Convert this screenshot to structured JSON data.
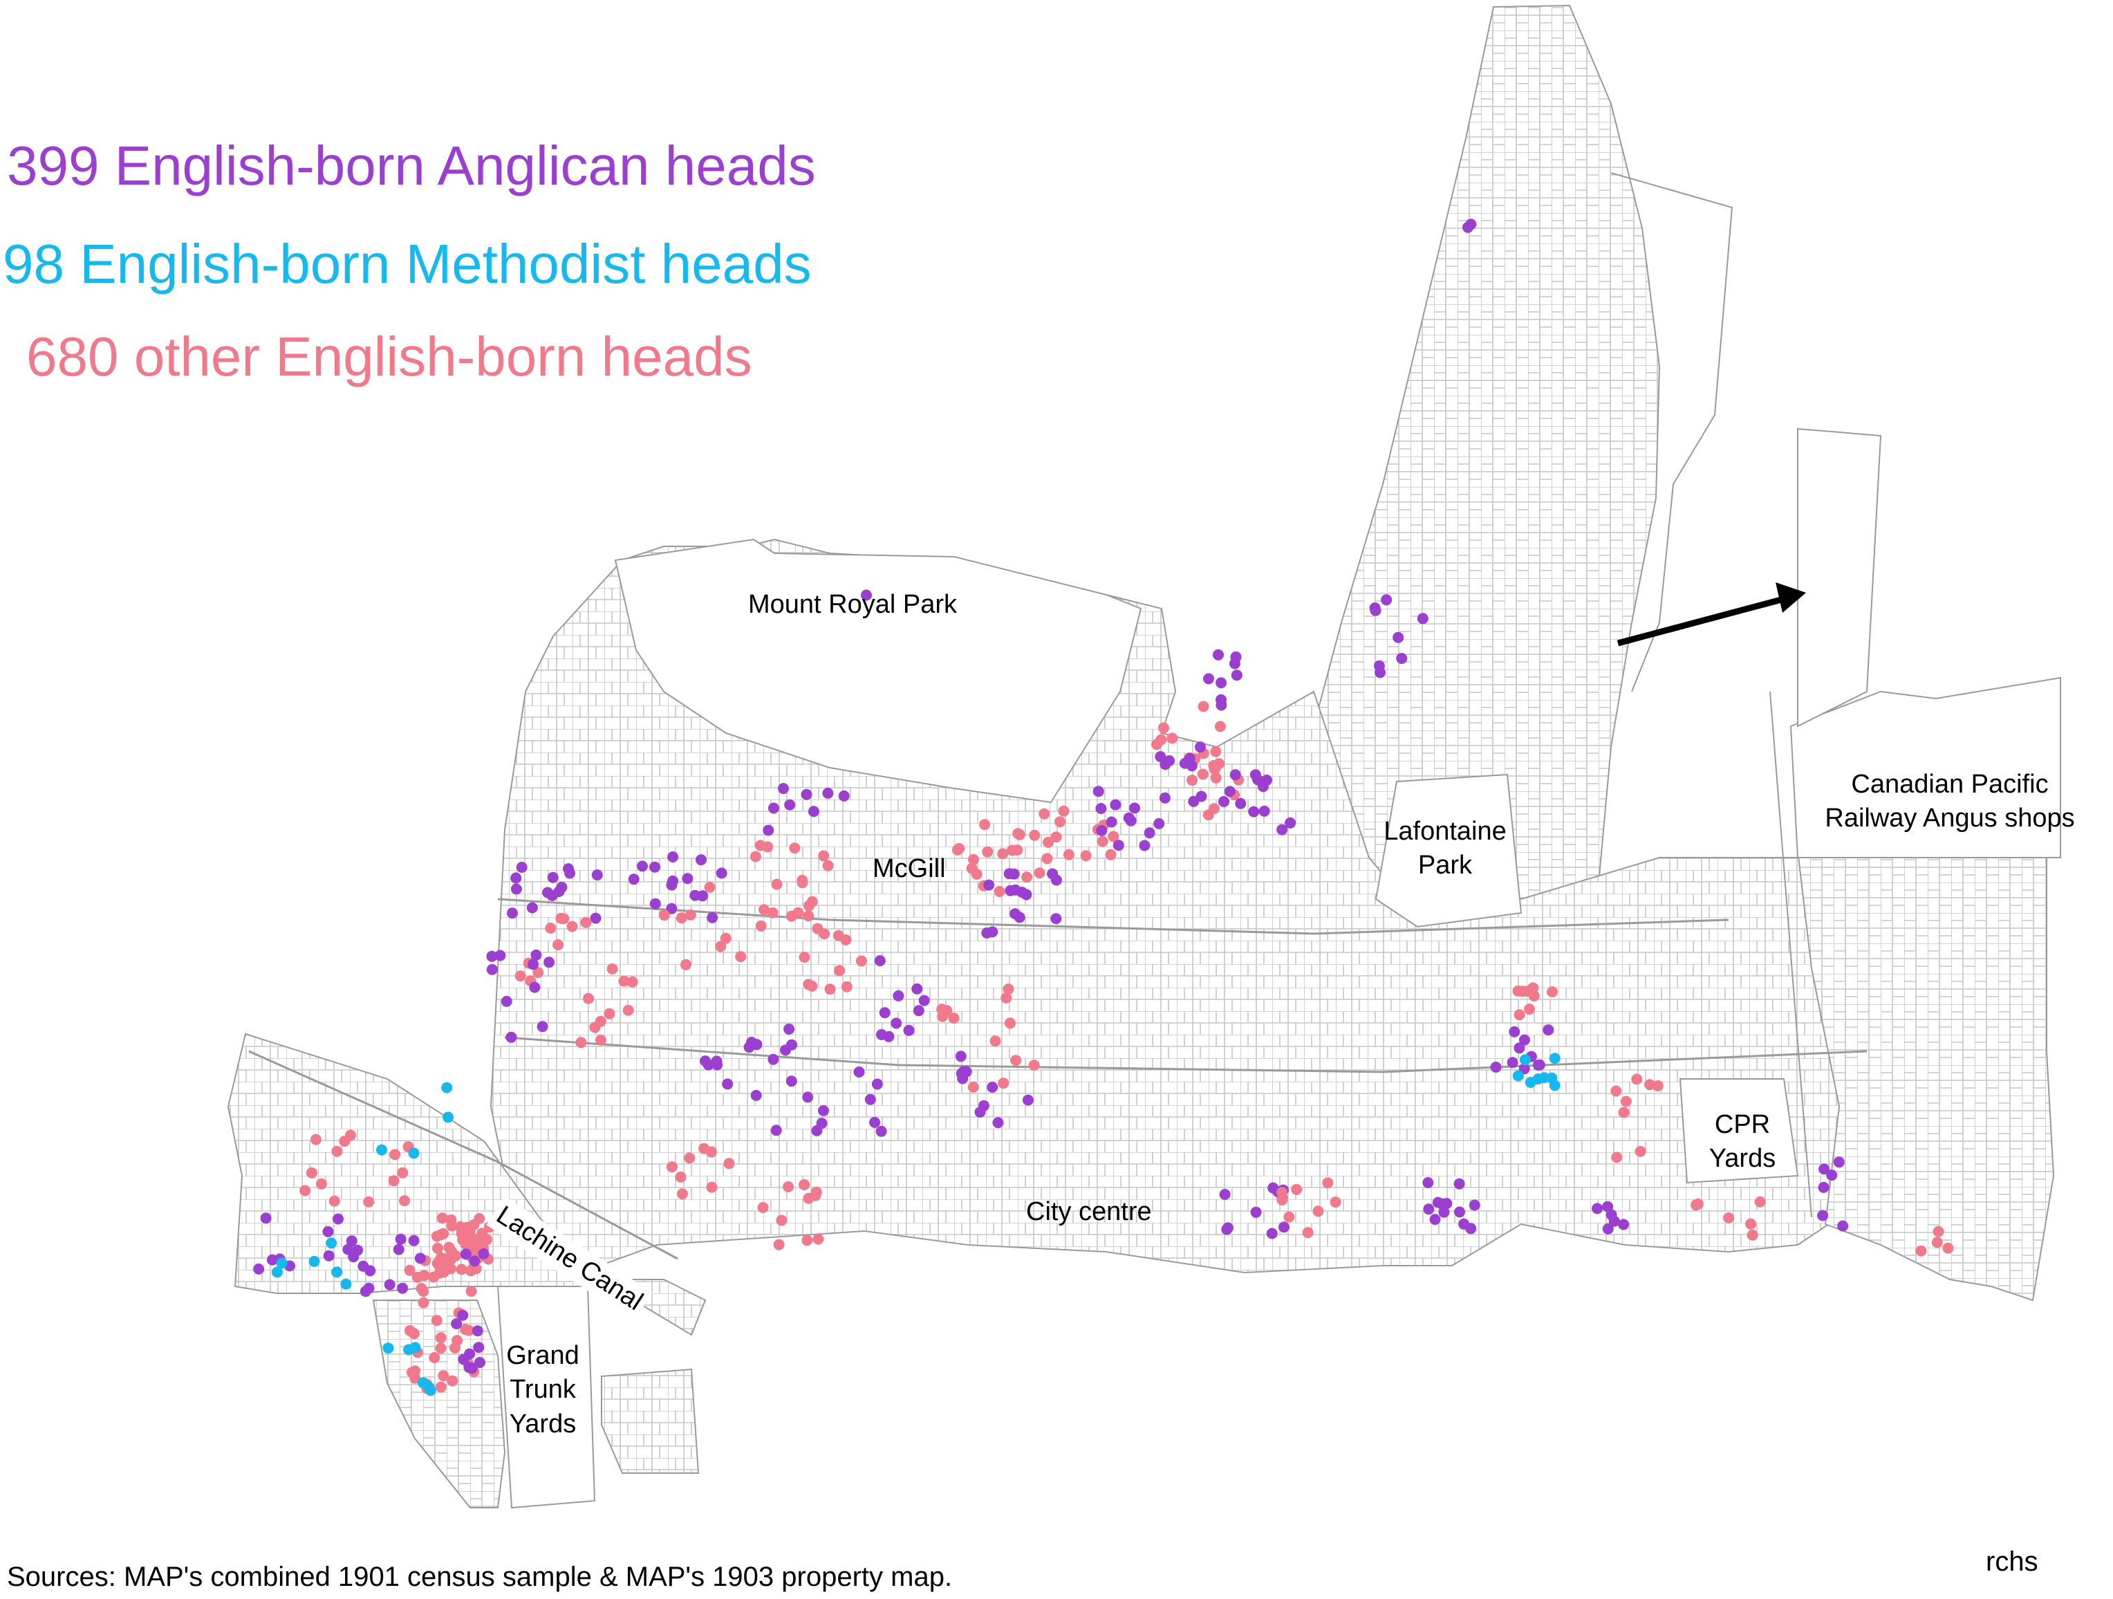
{
  "legend": [
    {
      "count": "399",
      "text": "399 English-born Anglican heads",
      "color": "#9b3fd1"
    },
    {
      "count": "98",
      "text": "98 English-born Methodist heads",
      "color": "#16b9ee"
    },
    {
      "count": "680",
      "text": "680 other English-born heads",
      "color": "#f07a8c"
    }
  ],
  "places": {
    "mount_royal": "Mount Royal Park",
    "mcgill": "McGill",
    "lafontaine_1": "Lafontaine",
    "lafontaine_2": "Park",
    "cpr_angus_1": "Canadian Pacific",
    "cpr_angus_2": "Railway Angus shops",
    "cpr_yards_1": "CPR",
    "cpr_yards_2": "Yards",
    "city_centre": "City centre",
    "lachine_canal": "Lachine Canal",
    "gt_1": "Grand",
    "gt_2": "Trunk",
    "gt_3": "Yards"
  },
  "footer": {
    "sources": "Sources: MAP's combined 1901 census sample & MAP's 1903 property map.",
    "credit": "rchs"
  },
  "colors": {
    "anglican": "#9b3fd1",
    "methodist": "#16b9ee",
    "other": "#f07a8c",
    "streets": "#bdbdbd"
  },
  "icons": [
    "direction-arrow-icon"
  ]
}
